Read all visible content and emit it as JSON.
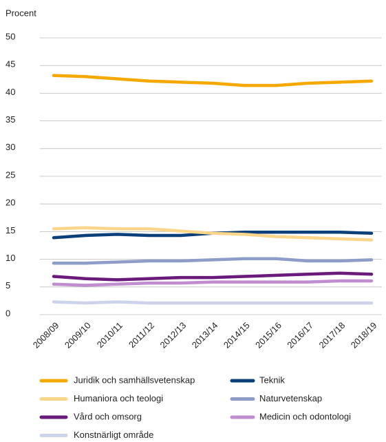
{
  "chart_data": {
    "type": "line",
    "y_label": "Procent",
    "categories": [
      "2008/09",
      "2009/10",
      "2010/11",
      "2011/12",
      "2012/13",
      "2013/14",
      "2014/15",
      "2015/16",
      "2016/17",
      "2017/18",
      "2018/19"
    ],
    "series": [
      {
        "name": "Juridik och samhällsvetenskap",
        "color": "#f5a800",
        "values": [
          43.2,
          43.0,
          42.6,
          42.2,
          42.0,
          41.8,
          41.4,
          41.4,
          41.8,
          42.0,
          42.2
        ]
      },
      {
        "name": "Teknik",
        "color": "#0b3f7a",
        "values": [
          13.9,
          14.3,
          14.5,
          14.3,
          14.3,
          14.7,
          14.9,
          14.9,
          14.9,
          14.9,
          14.7
        ]
      },
      {
        "name": "Humaniora och teologi",
        "color": "#fbd58a",
        "values": [
          15.5,
          15.7,
          15.5,
          15.5,
          15.1,
          14.7,
          14.5,
          14.1,
          13.9,
          13.7,
          13.5
        ]
      },
      {
        "name": "Naturvetenskap",
        "color": "#8e9cc8",
        "values": [
          9.3,
          9.3,
          9.5,
          9.7,
          9.7,
          9.9,
          10.1,
          10.1,
          9.7,
          9.7,
          9.9
        ]
      },
      {
        "name": "Vård och omsorg",
        "color": "#6a1a7a",
        "values": [
          6.9,
          6.5,
          6.3,
          6.5,
          6.7,
          6.7,
          6.9,
          7.1,
          7.3,
          7.5,
          7.3
        ]
      },
      {
        "name": "Medicin och odontologi",
        "color": "#c08ecf",
        "values": [
          5.5,
          5.3,
          5.5,
          5.7,
          5.7,
          5.9,
          5.9,
          5.9,
          5.9,
          6.1,
          6.1
        ]
      },
      {
        "name": "Konstnärligt område",
        "color": "#cdd3ea",
        "values": [
          2.3,
          2.1,
          2.3,
          2.1,
          2.1,
          2.1,
          2.1,
          2.1,
          2.1,
          2.1,
          2.1
        ]
      }
    ],
    "ylim": [
      0,
      50
    ],
    "yticks": [
      0,
      5,
      10,
      15,
      20,
      25,
      30,
      35,
      40,
      45,
      50
    ],
    "grid": true
  }
}
